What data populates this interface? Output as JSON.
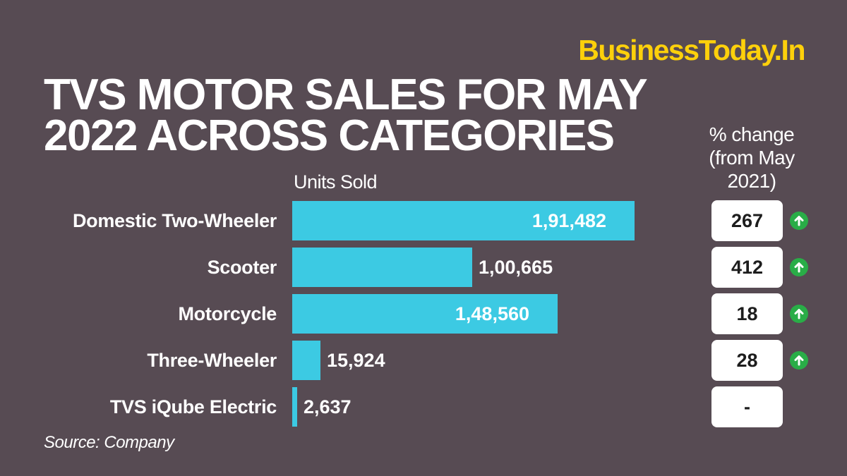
{
  "brand": "BusinessToday.In",
  "title": "TVS MOTOR SALES FOR MAY 2022 ACROSS CATEGORIES",
  "units_label": "Units Sold",
  "pct_header": "% change (from May 2021)",
  "source": "Source: Company",
  "colors": {
    "background": "#574b53",
    "bar": "#3ccae3",
    "brand": "#fdd00b",
    "up_arrow": "#29ad47"
  },
  "rows": [
    {
      "label": "Domestic Two-Wheeler",
      "value_text": "1,91,482",
      "pct": "267",
      "trend": "up"
    },
    {
      "label": "Scooter",
      "value_text": "1,00,665",
      "pct": "412",
      "trend": "up"
    },
    {
      "label": "Motorcycle",
      "value_text": "1,48,560",
      "pct": "18",
      "trend": "up"
    },
    {
      "label": "Three-Wheeler",
      "value_text": "15,924",
      "pct": "28",
      "trend": "up"
    },
    {
      "label": "TVS iQube Electric",
      "value_text": "2,637",
      "pct": "-",
      "trend": "none"
    }
  ],
  "chart_data": {
    "type": "bar",
    "orientation": "horizontal",
    "title": "TVS MOTOR SALES FOR MAY 2022 ACROSS CATEGORIES",
    "xlabel": "Units Sold",
    "ylabel": "",
    "categories": [
      "Domestic Two-Wheeler",
      "Scooter",
      "Motorcycle",
      "Three-Wheeler",
      "TVS iQube Electric"
    ],
    "series": [
      {
        "name": "Units Sold",
        "values": [
          191482,
          100665,
          148560,
          15924,
          2637
        ]
      },
      {
        "name": "% change (from May 2021)",
        "values": [
          267,
          412,
          18,
          28,
          null
        ]
      }
    ],
    "grid": false,
    "legend": "none",
    "source": "Source: Company"
  }
}
